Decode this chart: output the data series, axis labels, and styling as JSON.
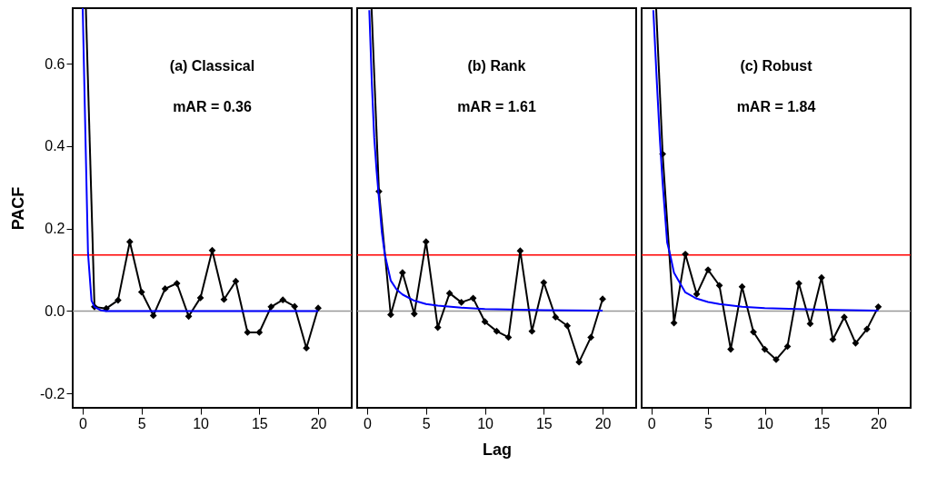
{
  "chart_data": [
    {
      "type": "line",
      "title": "(a) Classical",
      "subtitle": "mAR = 0.36",
      "ylabel": "PACF",
      "xlim": [
        -0.85,
        22.85
      ],
      "xticks": [
        0,
        5,
        10,
        15,
        20
      ],
      "ylim": [
        -0.235,
        0.735
      ],
      "yticks": [
        {
          "value": -0.2,
          "label": "-0.2"
        },
        {
          "value": 0,
          "label": "0.0"
        },
        {
          "value": 0.2,
          "label": "0.2"
        },
        {
          "value": 0.4,
          "label": "0.4"
        },
        {
          "value": 0.6,
          "label": "0.6"
        }
      ],
      "grid": false,
      "series": [
        {
          "color": "#000000",
          "x": [
            0.268,
            1
          ],
          "values": [
            0.735,
            0.01
          ]
        },
        {
          "color": "#000000",
          "marker": "diamond",
          "x": [
            1,
            2,
            3,
            4,
            5,
            6,
            7,
            8,
            9,
            10,
            11,
            12,
            13,
            14,
            15,
            16,
            17,
            18,
            19,
            20
          ],
          "values": [
            0.01,
            0.006,
            0.026,
            0.168,
            0.046,
            -0.011,
            0.054,
            0.067,
            -0.013,
            0.032,
            0.147,
            0.028,
            0.072,
            -0.052,
            -0.052,
            0.01,
            0.027,
            0.011,
            -0.09,
            0.007
          ]
        },
        {
          "color": "#0000ff",
          "marker": "none",
          "x": [
            0,
            0.25,
            0.45,
            0.75,
            1,
            1.5,
            2,
            20
          ],
          "values": [
            0.735,
            0.4,
            0.14,
            0.025,
            0.01,
            0.002,
            0,
            0
          ]
        }
      ],
      "ref_lines": [
        {
          "axis": "y",
          "value": 0.136,
          "color": "#ff0000"
        },
        {
          "axis": "y",
          "value": 0,
          "color": "#999999"
        }
      ]
    },
    {
      "type": "line",
      "title": "(b) Rank",
      "subtitle": "mAR = 1.61",
      "xlabel": "Lag",
      "xlim": [
        -0.85,
        22.85
      ],
      "xticks": [
        0,
        5,
        10,
        15,
        20
      ],
      "ylim": [
        -0.235,
        0.735
      ],
      "tick_labels": "x",
      "grid": false,
      "series": [
        {
          "color": "#000000",
          "x": [
            0.373,
            1
          ],
          "values": [
            0.735,
            0.29
          ]
        },
        {
          "color": "#000000",
          "marker": "diamond",
          "x": [
            1,
            2,
            3,
            4,
            5,
            6,
            7,
            8,
            9,
            10,
            11,
            12,
            13,
            14,
            15,
            16,
            17,
            18,
            19,
            20
          ],
          "values": [
            0.29,
            -0.009,
            0.093,
            -0.007,
            0.168,
            -0.04,
            0.043,
            0.021,
            0.031,
            -0.026,
            -0.049,
            -0.064,
            0.146,
            -0.049,
            0.069,
            -0.015,
            -0.036,
            -0.124,
            -0.064,
            0.029
          ]
        },
        {
          "color": "#0000ff",
          "marker": "none",
          "x": [
            0.18,
            0.4,
            0.6,
            0.8,
            1.25,
            1.5,
            2,
            2.5,
            3,
            4,
            5,
            6,
            8,
            10,
            15,
            20
          ],
          "values": [
            0.73,
            0.55,
            0.42,
            0.34,
            0.19,
            0.137,
            0.074,
            0.052,
            0.04,
            0.025,
            0.017,
            0.013,
            0.008,
            0.005,
            0.002,
            0.001
          ]
        }
      ],
      "ref_lines": [
        {
          "axis": "y",
          "value": 0.136,
          "color": "#ff0000"
        },
        {
          "axis": "y",
          "value": 0,
          "color": "#999999"
        }
      ]
    },
    {
      "type": "line",
      "title": "(c) Robust",
      "subtitle": "mAR = 1.84",
      "xlim": [
        -0.85,
        22.85
      ],
      "xticks": [
        0,
        5,
        10,
        15,
        20
      ],
      "ylim": [
        -0.235,
        0.735
      ],
      "tick_labels": "x",
      "grid": false,
      "series": [
        {
          "color": "#000000",
          "x": [
            0.428,
            1
          ],
          "values": [
            0.735,
            0.381
          ]
        },
        {
          "color": "#000000",
          "marker": "diamond",
          "x": [
            1,
            2,
            3,
            4,
            5,
            6,
            7,
            8,
            9,
            10,
            11,
            12,
            13,
            14,
            15,
            16,
            17,
            18,
            19,
            20
          ],
          "values": [
            0.381,
            -0.029,
            0.138,
            0.041,
            0.1,
            0.062,
            -0.093,
            0.059,
            -0.051,
            -0.093,
            -0.118,
            -0.086,
            0.067,
            -0.031,
            0.081,
            -0.069,
            -0.015,
            -0.078,
            -0.044,
            0.01
          ]
        },
        {
          "color": "#0000ff",
          "marker": "none",
          "x": [
            0.18,
            0.5,
            0.75,
            1,
            1.4,
            1.66,
            2,
            3,
            4,
            5,
            6,
            8,
            10,
            15,
            20
          ],
          "values": [
            0.73,
            0.55,
            0.42,
            0.31,
            0.166,
            0.137,
            0.093,
            0.045,
            0.03,
            0.022,
            0.017,
            0.01,
            0.007,
            0.003,
            0.001
          ]
        }
      ],
      "ref_lines": [
        {
          "axis": "y",
          "value": 0.136,
          "color": "#ff0000"
        },
        {
          "axis": "y",
          "value": 0,
          "color": "#999999"
        }
      ]
    }
  ]
}
